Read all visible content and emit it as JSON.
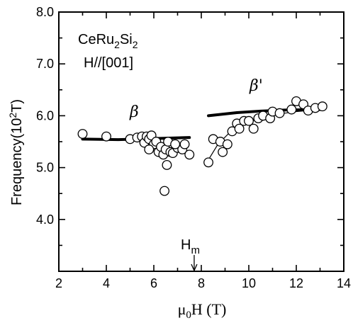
{
  "chart_data": {
    "type": "scatter",
    "title": "",
    "annotations": {
      "sample_line1_base": "CeRu",
      "sample_line1_sub1": "2",
      "sample_line1_mid": "Si",
      "sample_line1_sub2": "2",
      "sample_line2": "H//[001]",
      "beta_label": "β",
      "beta_prime_label": "β'",
      "hm_label": "H",
      "hm_sub": "m",
      "hm_arrow_x": 7.7
    },
    "xlabel": {
      "mu": "μ",
      "sub": "0",
      "rest": "H (T)"
    },
    "ylabel": {
      "main": "Frequency(10",
      "sup": "2",
      "unit": "T)"
    },
    "xlim": [
      2,
      14
    ],
    "ylim": [
      3.0,
      8.0
    ],
    "x_ticks": [
      2,
      4,
      6,
      8,
      10,
      12,
      14
    ],
    "x_tick_labels": [
      "2",
      "4",
      "6",
      "8",
      "10",
      "12",
      "14"
    ],
    "y_ticks": [
      4.0,
      5.0,
      6.0,
      7.0,
      8.0
    ],
    "y_tick_labels": [
      "4.0",
      "5.0",
      "6.0",
      "7.0",
      "8.0"
    ],
    "grid": false,
    "series": [
      {
        "marker": "open-circle",
        "points": [
          [
            3.0,
            5.65
          ],
          [
            4.0,
            5.6
          ],
          [
            5.0,
            5.55
          ],
          [
            5.3,
            5.58
          ],
          [
            5.5,
            5.6
          ],
          [
            5.6,
            5.48
          ],
          [
            5.7,
            5.6
          ],
          [
            5.8,
            5.55
          ],
          [
            5.9,
            5.62
          ],
          [
            6.0,
            5.45
          ],
          [
            6.1,
            5.5
          ],
          [
            6.2,
            5.3
          ],
          [
            6.3,
            5.4
          ],
          [
            6.4,
            5.25
          ],
          [
            6.5,
            5.35
          ],
          [
            6.55,
            5.05
          ],
          [
            6.6,
            5.5
          ],
          [
            6.7,
            5.3
          ],
          [
            6.8,
            5.28
          ],
          [
            7.0,
            5.38
          ],
          [
            7.2,
            5.35
          ],
          [
            7.3,
            5.45
          ],
          [
            7.5,
            5.25
          ],
          [
            6.45,
            4.55
          ],
          [
            5.8,
            5.35
          ],
          [
            6.9,
            5.45
          ]
        ]
      },
      {
        "marker": "open-circle",
        "points": [
          [
            8.3,
            5.1
          ],
          [
            8.5,
            5.55
          ],
          [
            8.8,
            5.5
          ],
          [
            8.9,
            5.3
          ],
          [
            9.1,
            5.45
          ],
          [
            9.3,
            5.7
          ],
          [
            9.5,
            5.85
          ],
          [
            9.6,
            5.75
          ],
          [
            9.8,
            5.9
          ],
          [
            10.0,
            5.9
          ],
          [
            10.2,
            5.75
          ],
          [
            10.4,
            5.95
          ],
          [
            10.6,
            6.0
          ],
          [
            10.9,
            5.95
          ],
          [
            11.0,
            6.08
          ],
          [
            11.3,
            6.05
          ],
          [
            11.8,
            6.12
          ],
          [
            12.0,
            6.28
          ],
          [
            12.3,
            6.22
          ],
          [
            12.5,
            6.1
          ],
          [
            12.8,
            6.15
          ],
          [
            13.1,
            6.18
          ]
        ]
      }
    ],
    "fits": [
      {
        "style": "thick",
        "points": [
          [
            3.0,
            5.55
          ],
          [
            4.5,
            5.54
          ],
          [
            6.0,
            5.56
          ],
          [
            7.5,
            5.58
          ]
        ]
      },
      {
        "style": "thick",
        "points": [
          [
            8.3,
            6.0
          ],
          [
            9.5,
            6.06
          ],
          [
            10.5,
            6.09
          ],
          [
            11.5,
            6.11
          ],
          [
            13.0,
            6.12
          ]
        ]
      },
      {
        "style": "thin",
        "points": [
          [
            8.3,
            5.15
          ],
          [
            8.7,
            5.45
          ],
          [
            9.2,
            5.68
          ],
          [
            9.8,
            5.85
          ],
          [
            10.5,
            5.95
          ],
          [
            11.2,
            6.03
          ],
          [
            12.0,
            6.08
          ],
          [
            13.0,
            6.12
          ]
        ]
      }
    ]
  }
}
